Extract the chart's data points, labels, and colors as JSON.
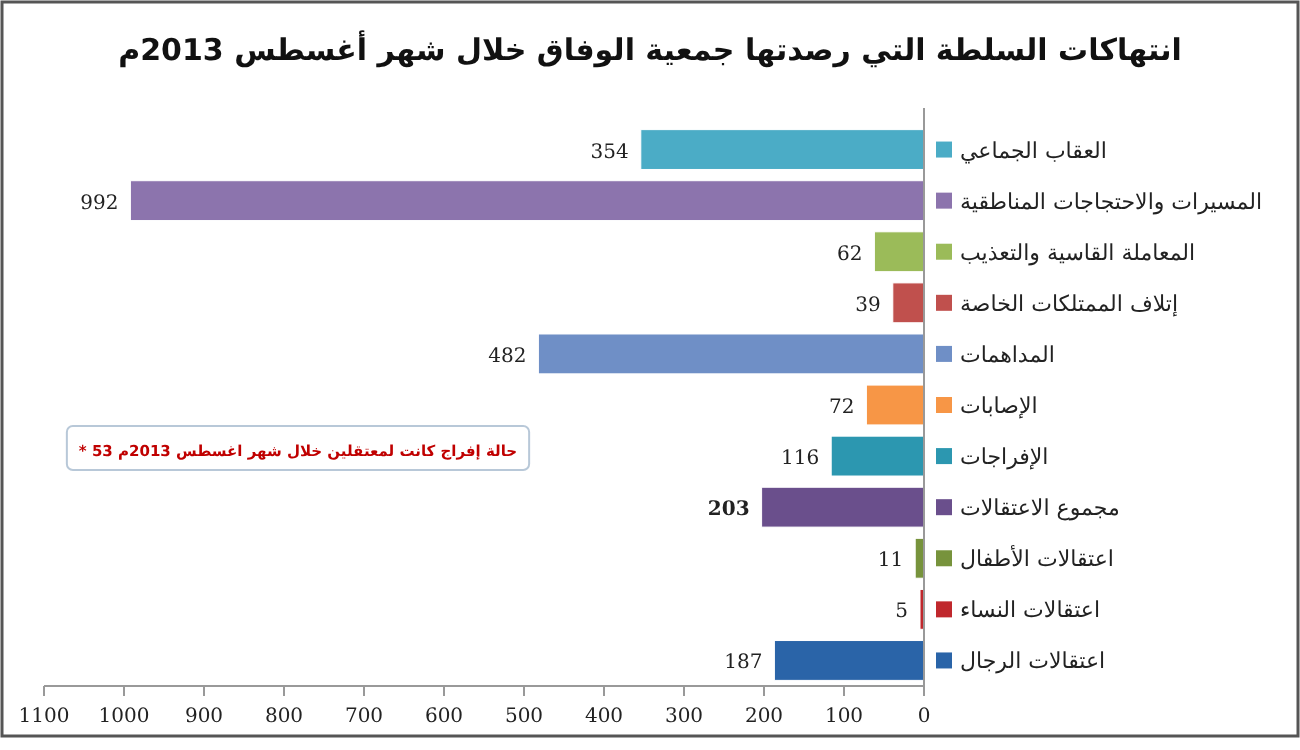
{
  "chart_data": {
    "type": "bar",
    "orientation": "horizontal",
    "title": "انتهاكات السلطة التي رصدتها جمعية الوفاق خلال شهر أغسطس 2013م",
    "categories": [
      "العقاب الجماعي",
      "المسيرات والاحتجاجات المناطقية",
      "المعاملة القاسية والتعذيب",
      "إتلاف الممتلكات الخاصة",
      "المداهمات",
      "الإصابات",
      "الإفراجات",
      "مجموع الاعتقالات",
      "اعتقالات الأطفال",
      "اعتقالات النساء",
      "اعتقالات الرجال"
    ],
    "values": [
      354,
      992,
      62,
      39,
      482,
      72,
      116,
      203,
      11,
      5,
      187
    ],
    "colors": [
      "#4bacc6",
      "#8c74ad",
      "#9bbb59",
      "#c0504d",
      "#6f8fc6",
      "#f79646",
      "#2c97b0",
      "#6a4f8c",
      "#77933c",
      "#c0282d",
      "#2a64a8"
    ],
    "xlim": [
      1100,
      0
    ],
    "xticks": [
      0,
      100,
      200,
      300,
      400,
      500,
      600,
      700,
      800,
      900,
      1000,
      1100
    ],
    "data_labels": true,
    "annotations": [
      "* 53 حالة إفراج كانت لمعتقلين خلال شهر اغسطس 2013م"
    ]
  }
}
